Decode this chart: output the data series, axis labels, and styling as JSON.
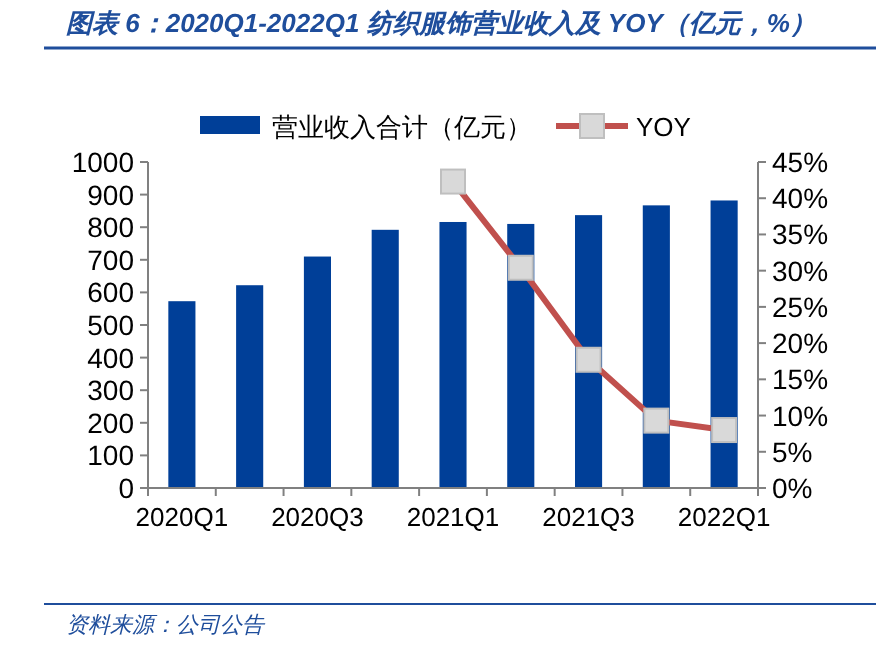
{
  "chart_data": {
    "type": "bar",
    "title": "图表 6：2020Q1-2022Q1 纺织服饰营业收入及 YOY（亿元，%）",
    "categories": [
      "2020Q1",
      null,
      "2020Q3",
      null,
      "2021Q1",
      null,
      "2021Q3",
      null,
      "2022Q1"
    ],
    "series": [
      {
        "name": "营业收入合计（亿元）",
        "color": "#003f98",
        "values": [
          573,
          622,
          710,
          792,
          816,
          810,
          837,
          867,
          882
        ]
      },
      {
        "name": "YOY",
        "type": "line",
        "axis": "y2",
        "color": "#c0504d",
        "marker": "square",
        "values": [
          null,
          null,
          null,
          null,
          42.3,
          30.4,
          17.7,
          9.3,
          8.0
        ]
      }
    ],
    "ylim": [
      0,
      1000
    ],
    "yticks": [
      0,
      100,
      200,
      300,
      400,
      500,
      600,
      700,
      800,
      900,
      1000
    ],
    "y2lim": [
      0,
      45
    ],
    "y2ticks": [
      {
        "value": 0,
        "label": "0%"
      },
      {
        "value": 5,
        "label": "5%"
      },
      {
        "value": 10,
        "label": "10%"
      },
      {
        "value": 15,
        "label": "15%"
      },
      {
        "value": 20,
        "label": "20%"
      },
      {
        "value": 25,
        "label": "25%"
      },
      {
        "value": 30,
        "label": "30%"
      },
      {
        "value": 35,
        "label": "35%"
      },
      {
        "value": 40,
        "label": "40%"
      },
      {
        "value": 45,
        "label": "45%"
      }
    ],
    "legend": "top",
    "grid": false,
    "annotations": [
      "资料来源：公司公告"
    ]
  }
}
